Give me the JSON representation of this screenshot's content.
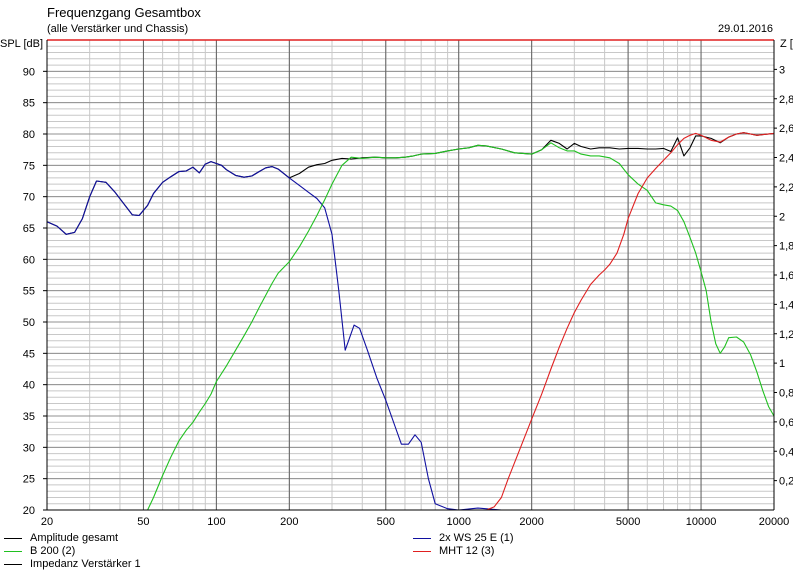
{
  "header": {
    "title": "Frequenzgang Gesamtbox",
    "subtitle": "(alle Verstärker und Chassis)",
    "date": "29.01.2016"
  },
  "chart_data": {
    "type": "line",
    "title": "Frequenzgang Gesamtbox",
    "subtitle": "(alle Verstärker und Chassis)",
    "xscale": "log",
    "xlim": [
      20,
      20000
    ],
    "ylim": [
      20,
      95
    ],
    "y2lim": [
      0,
      3.2
    ],
    "ylabel": "SPL [dB]",
    "y2label": "Z [",
    "grid": true,
    "legend_position": "bottom",
    "x_ticks": [
      20,
      50,
      100,
      200,
      500,
      1000,
      2000,
      5000,
      10000,
      20000
    ],
    "y_ticks": [
      20,
      25,
      30,
      35,
      40,
      45,
      50,
      55,
      60,
      65,
      70,
      75,
      80,
      85,
      90
    ],
    "y2_ticks": [
      "0,2",
      "0,4",
      "0,6",
      "0,8",
      "1",
      "1,2",
      "1,4",
      "1,6",
      "1,8",
      "2",
      "2,2",
      "2,4",
      "2,6",
      "2,8",
      "3"
    ],
    "y2_tick_values": [
      0.2,
      0.4,
      0.6,
      0.8,
      1.0,
      1.2,
      1.4,
      1.6,
      1.8,
      2.0,
      2.2,
      2.4,
      2.6,
      2.8,
      3.0
    ],
    "series": [
      {
        "name": "Amplitude gesamt",
        "color": "#000000",
        "x": [
          20,
          22,
          24,
          26,
          28,
          30,
          32,
          35,
          38,
          42,
          45,
          48,
          52,
          55,
          60,
          65,
          70,
          75,
          80,
          85,
          90,
          95,
          100,
          105,
          110,
          120,
          130,
          140,
          150,
          160,
          170,
          180,
          200,
          220,
          240,
          260,
          280,
          300,
          330,
          360,
          400,
          450,
          500,
          550,
          600,
          650,
          700,
          800,
          900,
          1000,
          1100,
          1200,
          1300,
          1500,
          1700,
          2000,
          2200,
          2400,
          2600,
          2800,
          3000,
          3200,
          3500,
          3800,
          4200,
          4600,
          5000,
          5500,
          6000,
          6500,
          7000,
          7500,
          8000,
          8500,
          9000,
          9500,
          10000,
          11000,
          12000,
          13000,
          14000,
          15000,
          16000,
          17000,
          18000,
          20000
        ],
        "values": [
          66,
          65.3,
          64,
          64.3,
          66.5,
          70,
          72.5,
          72.3,
          70.8,
          68.6,
          67.1,
          67,
          68.6,
          70.5,
          72.3,
          73.2,
          74,
          74.1,
          74.7,
          73.8,
          75.2,
          75.6,
          75.3,
          75,
          74.3,
          73.4,
          73.1,
          73.3,
          74,
          74.6,
          74.8,
          74.4,
          73,
          73.7,
          74.7,
          75.1,
          75.3,
          75.8,
          76.1,
          76,
          76.2,
          76.3,
          76.2,
          76.2,
          76.3,
          76.5,
          76.8,
          76.9,
          77.3,
          77.6,
          77.8,
          78.2,
          78.1,
          77.6,
          77,
          76.8,
          77.5,
          79,
          78.5,
          77.6,
          78.5,
          78,
          77.6,
          77.8,
          77.8,
          77.6,
          77.7,
          77.7,
          77.6,
          77.6,
          77.7,
          77.2,
          79.4,
          76.5,
          77.8,
          79.7,
          79.7,
          79.3,
          78.6,
          79.5,
          80,
          80.2,
          80,
          79.8,
          79.9,
          80.1
        ]
      },
      {
        "name": "2x WS 25 E (1)",
        "color": "#1010a0",
        "x": [
          20,
          22,
          24,
          26,
          28,
          30,
          32,
          35,
          38,
          42,
          45,
          48,
          52,
          55,
          60,
          65,
          70,
          75,
          80,
          85,
          90,
          95,
          100,
          105,
          110,
          120,
          130,
          140,
          150,
          160,
          170,
          180,
          200,
          220,
          240,
          260,
          280,
          300,
          320,
          340,
          370,
          390,
          420,
          460,
          500,
          550,
          580,
          620,
          660,
          700,
          750,
          800,
          900,
          1000,
          1200,
          1500,
          2000,
          20000
        ],
        "values": [
          66,
          65.3,
          64,
          64.3,
          66.5,
          70,
          72.5,
          72.3,
          70.8,
          68.6,
          67.1,
          67,
          68.6,
          70.5,
          72.3,
          73.2,
          74,
          74.1,
          74.7,
          73.8,
          75.2,
          75.6,
          75.3,
          75,
          74.3,
          73.4,
          73.1,
          73.3,
          74,
          74.6,
          74.8,
          74.4,
          73,
          71.8,
          70.7,
          69.7,
          68.2,
          64,
          55,
          45.5,
          49.5,
          49,
          45.5,
          41,
          37.5,
          33,
          30.5,
          30.5,
          32,
          30.8,
          25,
          21,
          20.2,
          20,
          20.3,
          20,
          20,
          20
        ]
      },
      {
        "name": "B 200 (2)",
        "color": "#20c020",
        "x": [
          20,
          52,
          55,
          60,
          65,
          70,
          75,
          80,
          85,
          90,
          95,
          100,
          110,
          120,
          130,
          140,
          150,
          160,
          170,
          180,
          200,
          220,
          240,
          260,
          280,
          300,
          330,
          360,
          400,
          450,
          500,
          550,
          600,
          650,
          700,
          800,
          900,
          1000,
          1100,
          1200,
          1300,
          1500,
          1700,
          2000,
          2200,
          2400,
          2600,
          2800,
          3000,
          3200,
          3500,
          3800,
          4200,
          4600,
          5000,
          5500,
          6000,
          6500,
          7000,
          7500,
          8000,
          8500,
          9000,
          9500,
          10000,
          10500,
          11000,
          11500,
          12000,
          12500,
          13000,
          14000,
          15000,
          16000,
          17000,
          18000,
          19000,
          20000
        ],
        "values": [
          20,
          20,
          22,
          25.5,
          28.5,
          31,
          32.7,
          34,
          35.6,
          37,
          38.5,
          40.5,
          43,
          45.5,
          47.8,
          50,
          52.3,
          54.3,
          56.2,
          57.8,
          59.6,
          62,
          64.5,
          67,
          69.5,
          72,
          75,
          76.3,
          76.1,
          76.3,
          76.2,
          76.2,
          76.3,
          76.5,
          76.8,
          76.9,
          77.3,
          77.6,
          77.8,
          78.2,
          78.1,
          77.6,
          77,
          76.8,
          77.5,
          78.6,
          77.8,
          77.3,
          77.3,
          76.8,
          76.5,
          76.5,
          76.2,
          75.3,
          73.5,
          72,
          71,
          69,
          68.7,
          68.5,
          67.8,
          66,
          63.5,
          61,
          58,
          55,
          50,
          46.5,
          45,
          46,
          47.5,
          47.6,
          46.8,
          44.8,
          42,
          39,
          36.5,
          35
        ]
      },
      {
        "name": "MHT 12 (3)",
        "color": "#e02020",
        "x": [
          20,
          1300,
          1400,
          1500,
          1600,
          1800,
          2000,
          2200,
          2400,
          2600,
          2800,
          3000,
          3200,
          3500,
          3800,
          4000,
          4200,
          4500,
          4800,
          5000,
          5500,
          6000,
          6500,
          7000,
          7500,
          8000,
          8500,
          9000,
          9500,
          10000,
          11000,
          12000,
          13000,
          14000,
          15000,
          16000,
          17000,
          18000,
          20000
        ],
        "values": [
          20,
          20,
          20.5,
          22,
          25,
          30,
          34.5,
          38.5,
          42.5,
          46,
          49,
          51.5,
          53.5,
          56,
          57.5,
          58.3,
          59.2,
          61,
          64,
          66.5,
          70.5,
          73,
          74.5,
          75.8,
          77,
          78.3,
          79.3,
          79.8,
          80.1,
          79.8,
          79,
          78.7,
          79.5,
          80,
          80.2,
          80,
          79.8,
          79.9,
          80.1
        ]
      }
    ],
    "legend": [
      {
        "label": "Amplitude gesamt",
        "color": "#000000"
      },
      {
        "label": "2x WS 25 E (1)",
        "color": "#1010a0"
      },
      {
        "label": "B 200 (2)",
        "color": "#20c020"
      },
      {
        "label": "MHT 12 (3)",
        "color": "#e02020"
      },
      {
        "label": "Impedanz Verstärker 1",
        "color": "#000000"
      }
    ]
  }
}
